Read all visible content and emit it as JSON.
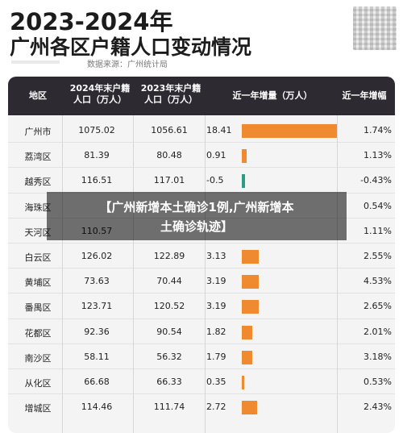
{
  "title_line1": "2023-2024年",
  "title_line2": "广州各区户籍人口变动情况",
  "source": "数据来源：广州统计局",
  "headers": {
    "district": "地区",
    "pop2024": "2024年末户籍人口（万人）",
    "pop2023": "2023年末户籍人口（万人）",
    "increase": "近一年增量（万人）",
    "rate": "近一年增幅"
  },
  "rows": [
    {
      "district": "广州市",
      "pop2024": "1075.02",
      "pop2023": "1056.61",
      "increase": "18.41",
      "increase_value": 18.41,
      "rate": "1.74%"
    },
    {
      "district": "荔湾区",
      "pop2024": "81.39",
      "pop2023": "80.48",
      "increase": "0.91",
      "increase_value": 0.91,
      "rate": "1.13%"
    },
    {
      "district": "越秀区",
      "pop2024": "116.51",
      "pop2023": "117.01",
      "increase": "-0.5",
      "increase_value": -0.5,
      "rate": "-0.43%"
    },
    {
      "district": "海珠区",
      "pop2024": "",
      "pop2023": "",
      "increase": "",
      "increase_value": 0.0,
      "rate": "0.54%"
    },
    {
      "district": "天河区",
      "pop2024": "110.57",
      "pop2023": "",
      "increase": "",
      "increase_value": 0.0,
      "rate": "1.11%"
    },
    {
      "district": "白云区",
      "pop2024": "126.02",
      "pop2023": "122.89",
      "increase": "3.13",
      "increase_value": 3.13,
      "rate": "2.55%"
    },
    {
      "district": "黄埔区",
      "pop2024": "73.63",
      "pop2023": "70.44",
      "increase": "3.19",
      "increase_value": 3.19,
      "rate": "4.53%"
    },
    {
      "district": "番禺区",
      "pop2024": "123.71",
      "pop2023": "120.52",
      "increase": "3.19",
      "increase_value": 3.19,
      "rate": "2.65%"
    },
    {
      "district": "花都区",
      "pop2024": "92.36",
      "pop2023": "90.54",
      "increase": "1.82",
      "increase_value": 1.82,
      "rate": "2.01%"
    },
    {
      "district": "南沙区",
      "pop2024": "58.11",
      "pop2023": "56.32",
      "increase": "1.79",
      "increase_value": 1.79,
      "rate": "3.18%"
    },
    {
      "district": "从化区",
      "pop2024": "66.68",
      "pop2023": "66.33",
      "increase": "0.35",
      "increase_value": 0.35,
      "rate": "0.53%"
    },
    {
      "district": "增城区",
      "pop2024": "114.46",
      "pop2023": "111.74",
      "increase": "2.72",
      "increase_value": 2.72,
      "rate": "2.43%"
    }
  ],
  "banner": {
    "line1": "【广州新增本土确诊1例,广州新增本",
    "line2": "土确诊轨迹】"
  },
  "colors": {
    "header_bg": "#2d2b31",
    "bar_positive": "#f08a30",
    "bar_negative": "#2e9c83",
    "card_bg": "#f4f4f5"
  },
  "icons": {
    "qr_code": "qr-code-icon"
  }
}
